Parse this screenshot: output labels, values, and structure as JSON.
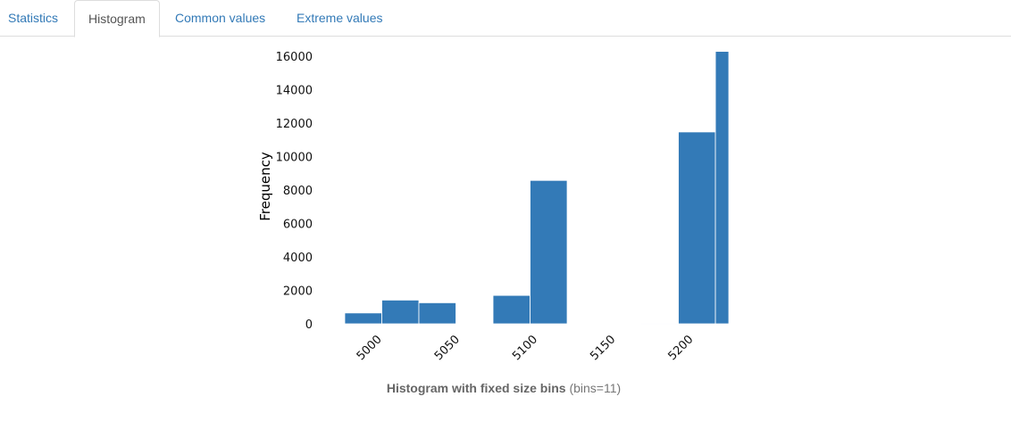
{
  "tabs": [
    {
      "label": "Statistics",
      "active": false
    },
    {
      "label": "Histogram",
      "active": true
    },
    {
      "label": "Common values",
      "active": false
    },
    {
      "label": "Extreme values",
      "active": false
    }
  ],
  "caption": {
    "title": "Histogram with fixed size bins",
    "detail": "(bins=11)"
  },
  "chart_data": {
    "type": "bar",
    "ylabel": "Frequency",
    "xlabel": "",
    "bar_color": "#337ab7",
    "x_ticks": [
      5000,
      5050,
      5100,
      5150,
      5200
    ],
    "y_ticks": [
      0,
      2000,
      4000,
      6000,
      8000,
      10000,
      12000,
      14000,
      16000
    ],
    "xlim": [
      4976,
      5222
    ],
    "ylim": [
      0,
      16600
    ],
    "bins": [
      {
        "start": 4976,
        "end": 4999.8,
        "count": 650
      },
      {
        "start": 4999.8,
        "end": 5023.6,
        "count": 1420
      },
      {
        "start": 5023.6,
        "end": 5047.4,
        "count": 1260
      },
      {
        "start": 5047.4,
        "end": 5071.2,
        "count": 0
      },
      {
        "start": 5071.2,
        "end": 5095.0,
        "count": 1700
      },
      {
        "start": 5095.0,
        "end": 5118.8,
        "count": 8580
      },
      {
        "start": 5118.8,
        "end": 5142.6,
        "count": 0
      },
      {
        "start": 5142.6,
        "end": 5166.4,
        "count": 0
      },
      {
        "start": 5166.4,
        "end": 5190.2,
        "count": 30
      },
      {
        "start": 5190.2,
        "end": 5214.0,
        "count": 11480
      },
      {
        "start": 5214.0,
        "end": 5237.8,
        "count": 16300
      }
    ]
  }
}
